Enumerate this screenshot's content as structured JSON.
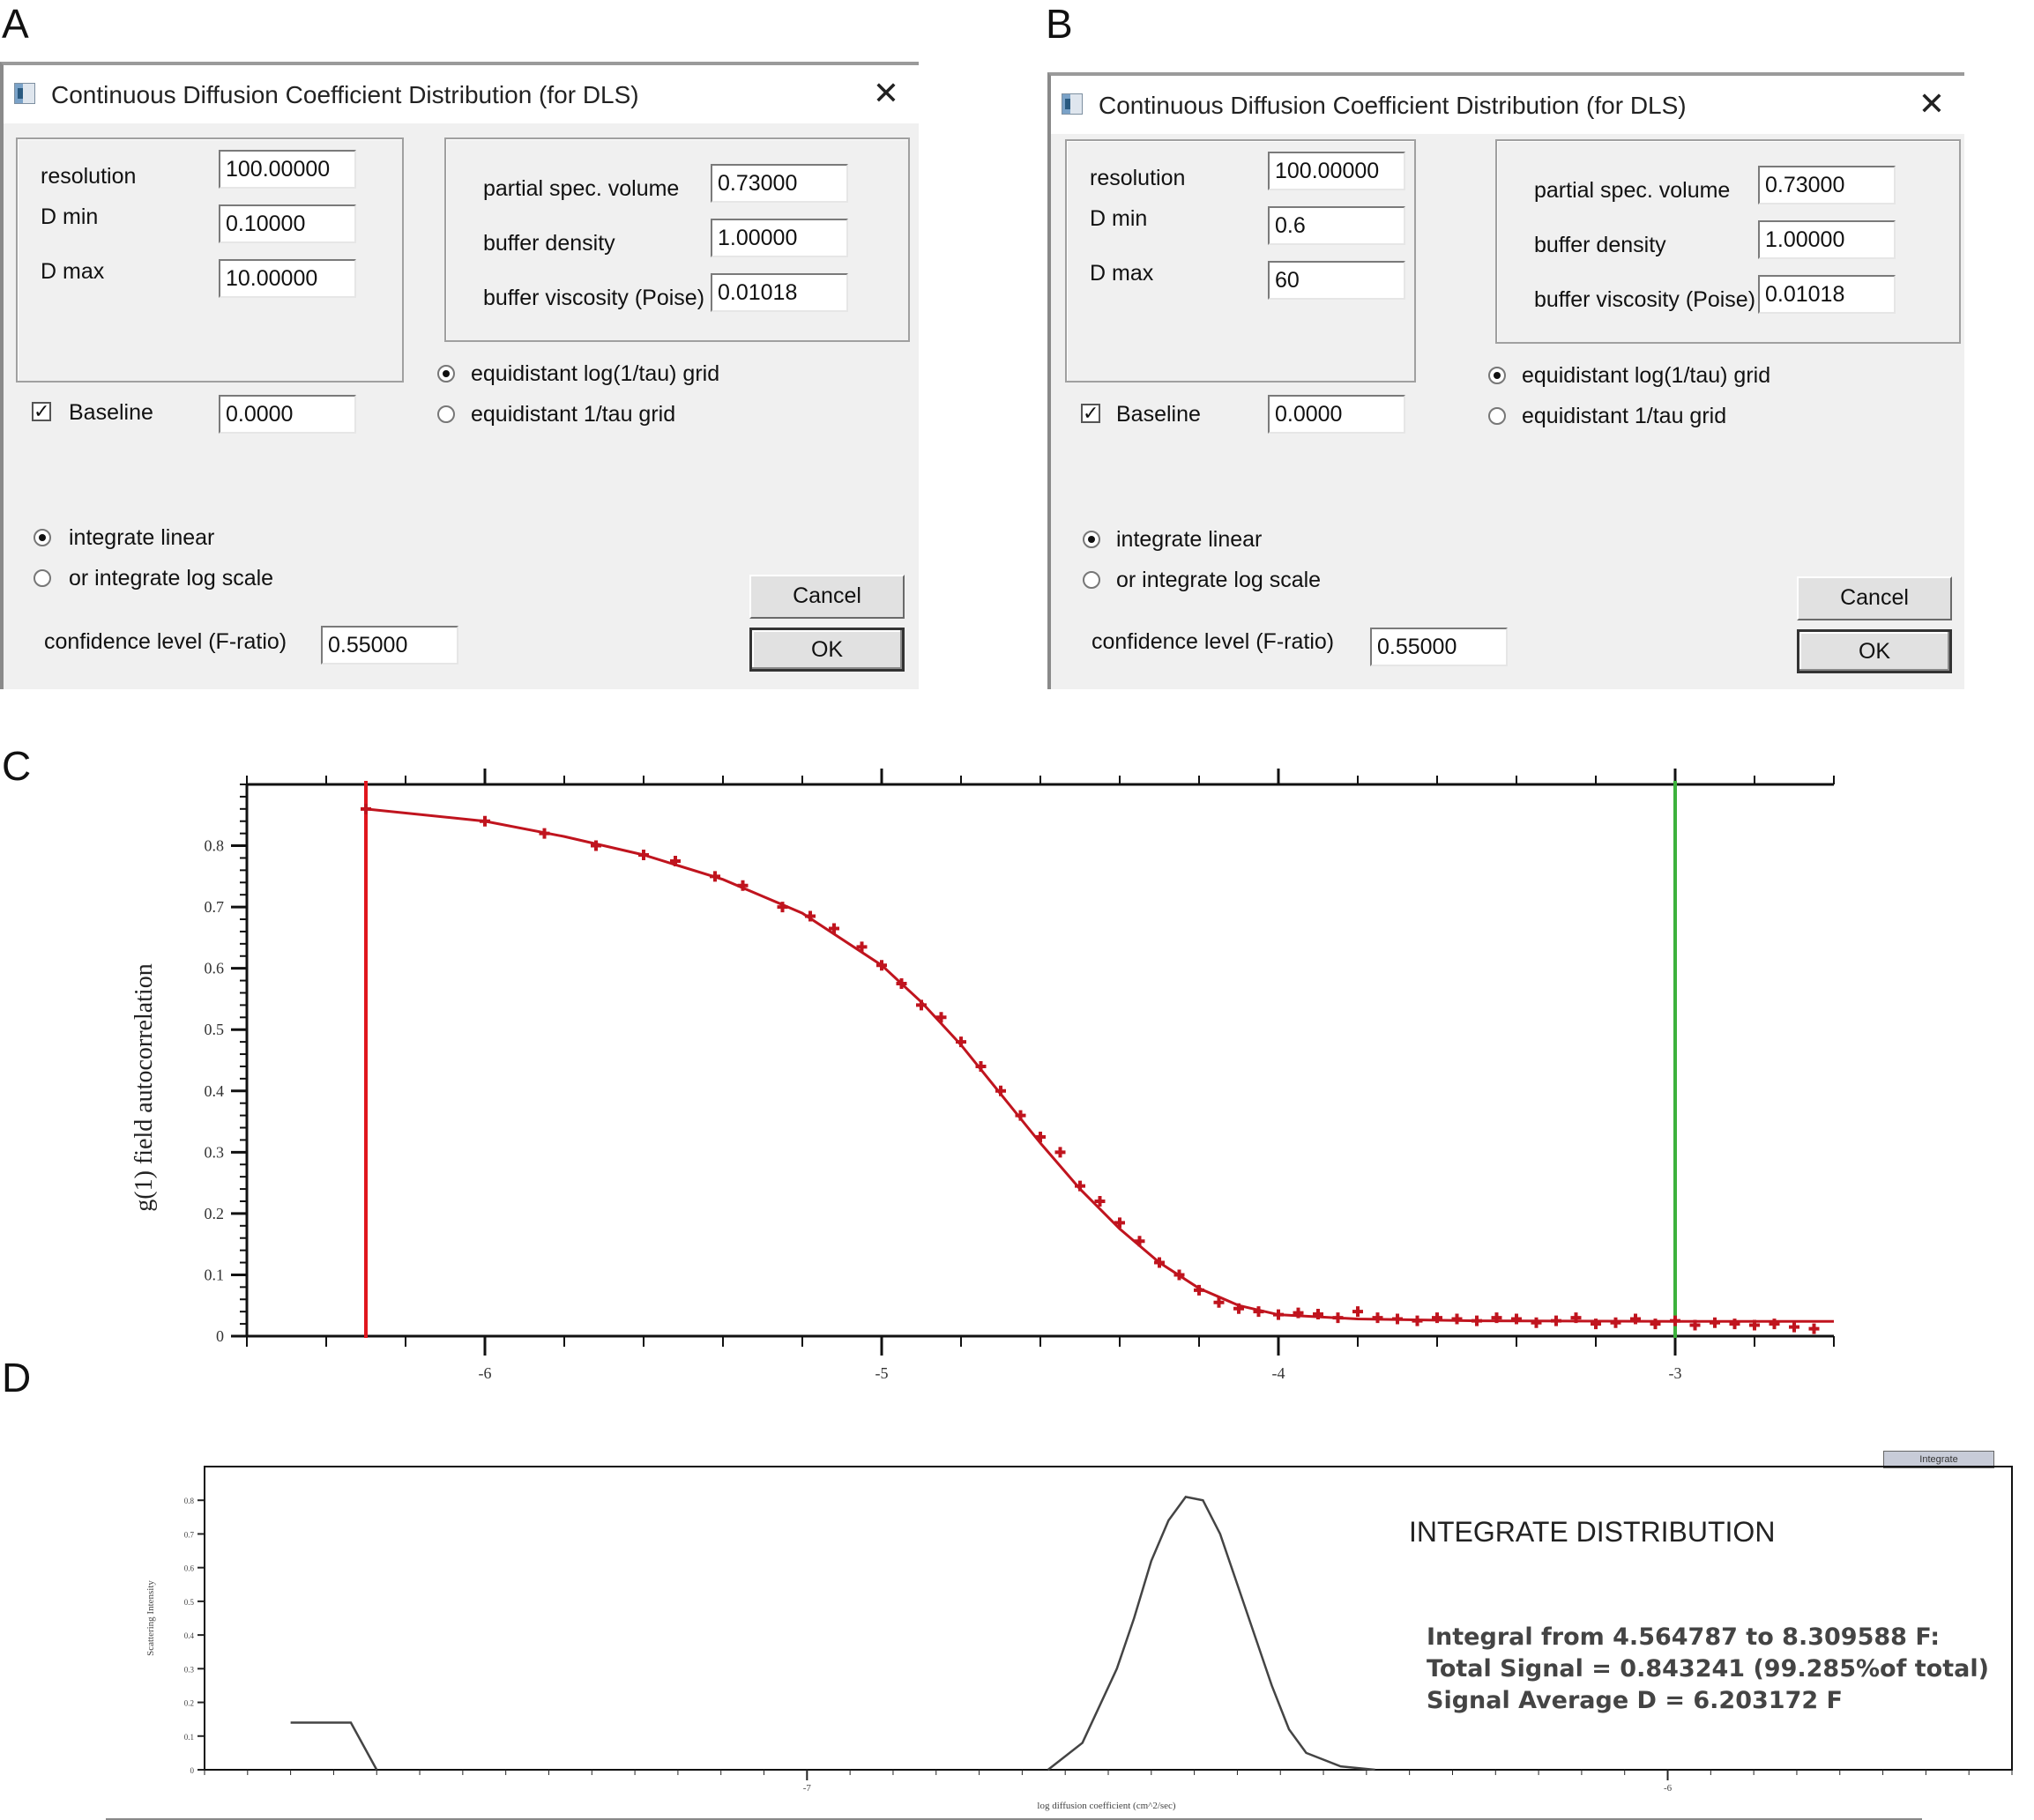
{
  "panels": {
    "a": "A",
    "b": "B",
    "c": "C",
    "d": "D"
  },
  "dialog_a": {
    "title": "Continuous Diffusion Coefficient Distribution (for DLS)",
    "resolution_label": "resolution",
    "resolution_value": "100.00000",
    "dmin_label": "D min",
    "dmin_value": "0.10000",
    "dmax_label": "D max",
    "dmax_value": "10.00000",
    "psv_label": "partial spec. volume",
    "psv_value": "0.73000",
    "density_label": "buffer density",
    "density_value": "1.00000",
    "viscosity_label": "buffer viscosity (Poise)",
    "viscosity_value": "0.01018",
    "grid_log_label": "equidistant log(1/tau) grid",
    "grid_lin_label": "equidistant 1/tau grid",
    "baseline_label": "Baseline",
    "baseline_value": "0.0000",
    "integrate_linear_label": "integrate linear",
    "integrate_log_label": "or integrate log scale",
    "confidence_label": "confidence level (F-ratio)",
    "confidence_value": "0.55000",
    "cancel_label": "Cancel",
    "ok_label": "OK"
  },
  "dialog_b": {
    "title": "Continuous Diffusion Coefficient Distribution (for DLS)",
    "resolution_label": "resolution",
    "resolution_value": "100.00000",
    "dmin_label": "D min",
    "dmin_value": "0.6",
    "dmax_label": "D max",
    "dmax_value": "60",
    "psv_label": "partial spec. volume",
    "psv_value": "0.73000",
    "density_label": "buffer density",
    "density_value": "1.00000",
    "viscosity_label": "buffer viscosity (Poise)",
    "viscosity_value": "0.01018",
    "grid_log_label": "equidistant log(1/tau) grid",
    "grid_lin_label": "equidistant 1/tau grid",
    "baseline_label": "Baseline",
    "baseline_value": "0.0000",
    "integrate_linear_label": "integrate linear",
    "integrate_log_label": "or integrate log scale",
    "confidence_label": "confidence level (F-ratio)",
    "confidence_value": "0.55000",
    "cancel_label": "Cancel",
    "ok_label": "OK"
  },
  "integrate_tab_label": "Integrate",
  "integrate": {
    "title": "INTEGRATE DISTRIBUTION",
    "line1": "Integral from 4.564787 to 8.309588 F:",
    "line2": "Total Signal = 0.843241 (99.285%of total)",
    "line3": "Signal Average D = 6.203172 F"
  },
  "chart_data": [
    {
      "type": "scatter",
      "panel": "C",
      "title": "",
      "xlabel": "",
      "ylabel": "g(1) field autocorrelation",
      "xlim": [
        -6.6,
        -2.6
      ],
      "ylim": [
        0,
        0.9
      ],
      "x_ticks": [
        "-6",
        "-5",
        "-4",
        "-3"
      ],
      "y_ticks": [
        "0",
        "0.1",
        "0.2",
        "0.3",
        "0.4",
        "0.5",
        "0.6",
        "0.7",
        "0.8"
      ],
      "series": [
        {
          "style": "points",
          "color": "#c0141e",
          "x": [
            -6.3,
            -6.0,
            -5.85,
            -5.72,
            -5.6,
            -5.52,
            -5.42,
            -5.35,
            -5.25,
            -5.18,
            -5.12,
            -5.05,
            -5.0,
            -4.95,
            -4.9,
            -4.85,
            -4.8,
            -4.75,
            -4.7,
            -4.65,
            -4.6,
            -4.55,
            -4.5,
            -4.45,
            -4.4,
            -4.35,
            -4.3,
            -4.25,
            -4.2,
            -4.15,
            -4.1,
            -4.05,
            -4.0,
            -3.95,
            -3.9,
            -3.85,
            -3.8,
            -3.75,
            -3.7,
            -3.65,
            -3.6,
            -3.55,
            -3.5,
            -3.45,
            -3.4,
            -3.35,
            -3.3,
            -3.25,
            -3.2,
            -3.15,
            -3.1,
            -3.05,
            -3.0,
            -2.95,
            -2.9,
            -2.85,
            -2.8,
            -2.75,
            -2.7,
            -2.65
          ],
          "y": [
            0.86,
            0.84,
            0.82,
            0.8,
            0.785,
            0.775,
            0.75,
            0.735,
            0.7,
            0.685,
            0.665,
            0.635,
            0.605,
            0.575,
            0.54,
            0.52,
            0.48,
            0.44,
            0.4,
            0.36,
            0.325,
            0.3,
            0.245,
            0.22,
            0.185,
            0.155,
            0.12,
            0.1,
            0.075,
            0.055,
            0.045,
            0.04,
            0.035,
            0.038,
            0.036,
            0.03,
            0.04,
            0.03,
            0.028,
            0.025,
            0.03,
            0.028,
            0.025,
            0.03,
            0.028,
            0.022,
            0.025,
            0.03,
            0.02,
            0.022,
            0.028,
            0.02,
            0.025,
            0.018,
            0.022,
            0.02,
            0.018,
            0.02,
            0.015,
            0.012
          ]
        },
        {
          "style": "line",
          "color": "#c0141e",
          "x": [
            -6.3,
            -6.0,
            -5.8,
            -5.6,
            -5.4,
            -5.2,
            -5.0,
            -4.9,
            -4.8,
            -4.7,
            -4.6,
            -4.5,
            -4.4,
            -4.3,
            -4.2,
            -4.1,
            -4.0,
            -3.8,
            -3.5,
            -3.0,
            -2.6
          ],
          "y": [
            0.86,
            0.84,
            0.815,
            0.785,
            0.745,
            0.69,
            0.605,
            0.545,
            0.475,
            0.395,
            0.315,
            0.24,
            0.175,
            0.12,
            0.078,
            0.05,
            0.035,
            0.028,
            0.025,
            0.024,
            0.024
          ]
        }
      ],
      "markers": [
        {
          "label": "left-limit",
          "x": -6.3,
          "color": "#e0161e"
        },
        {
          "label": "right-limit",
          "x": -3.0,
          "color": "#3cb23c"
        }
      ]
    },
    {
      "type": "line",
      "panel": "D",
      "title": "",
      "xlabel": "log diffusion coefficient (cm^2/sec)",
      "ylabel": "Scattering Intensity",
      "xlim": [
        -7.7,
        -5.6
      ],
      "ylim": [
        0,
        0.9
      ],
      "x_ticks": [
        "-7",
        "-6"
      ],
      "y_ticks": [
        "0",
        "0.1",
        "0.2",
        "0.3",
        "0.4",
        "0.5",
        "0.6",
        "0.7",
        "0.8"
      ],
      "series": [
        {
          "color": "#444444",
          "x": [
            -7.6,
            -7.56,
            -7.53,
            -7.5,
            -6.72,
            -6.68,
            -6.64,
            -6.62,
            -6.6,
            -6.58,
            -6.56,
            -6.54,
            -6.52,
            -6.5,
            -6.48,
            -6.46,
            -6.44,
            -6.42,
            -6.38,
            -6.34
          ],
          "y": [
            0.14,
            0.14,
            0.14,
            0.0,
            0.0,
            0.08,
            0.3,
            0.45,
            0.62,
            0.74,
            0.81,
            0.8,
            0.7,
            0.55,
            0.4,
            0.25,
            0.12,
            0.05,
            0.01,
            0.0
          ]
        }
      ]
    }
  ]
}
